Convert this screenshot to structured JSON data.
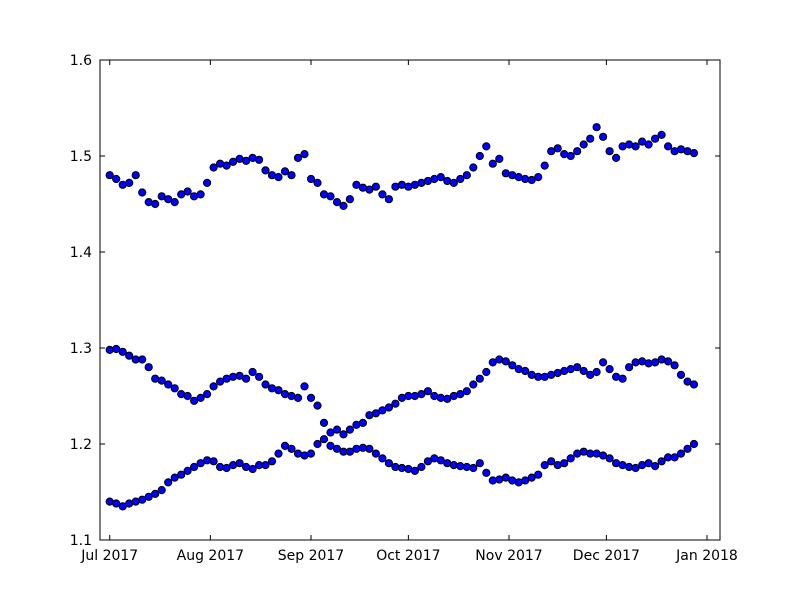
{
  "chart_data": {
    "type": "scatter",
    "title": "",
    "xlabel": "",
    "ylabel": "",
    "xlim": [
      "2017-06-28",
      "2018-01-05"
    ],
    "ylim": [
      1.1,
      1.6
    ],
    "grid": false,
    "marker_color": "#0000ff",
    "marker_edge_color": "#000000",
    "x_ticks": [
      {
        "date": "2017-07-01",
        "label": "Jul 2017"
      },
      {
        "date": "2017-08-01",
        "label": "Aug 2017"
      },
      {
        "date": "2017-09-01",
        "label": "Sep 2017"
      },
      {
        "date": "2017-10-01",
        "label": "Oct 2017"
      },
      {
        "date": "2017-11-01",
        "label": "Nov 2017"
      },
      {
        "date": "2017-12-01",
        "label": "Dec 2017"
      },
      {
        "date": "2018-01-01",
        "label": "Jan 2018"
      }
    ],
    "y_ticks": [
      {
        "value": 1.1,
        "label": "1.1"
      },
      {
        "value": 1.2,
        "label": "1.2"
      },
      {
        "value": 1.3,
        "label": "1.3"
      },
      {
        "value": 1.4,
        "label": "1.4"
      },
      {
        "value": 1.5,
        "label": "1.5"
      },
      {
        "value": 1.6,
        "label": "1.6"
      }
    ],
    "series": [
      {
        "x": [
          "2017-07-01",
          "2017-07-03",
          "2017-07-05",
          "2017-07-07",
          "2017-07-09",
          "2017-07-11",
          "2017-07-13",
          "2017-07-15",
          "2017-07-17",
          "2017-07-19",
          "2017-07-21",
          "2017-07-23",
          "2017-07-25",
          "2017-07-27",
          "2017-07-29",
          "2017-07-31",
          "2017-08-02",
          "2017-08-04",
          "2017-08-06",
          "2017-08-08",
          "2017-08-10",
          "2017-08-12",
          "2017-08-14",
          "2017-08-16",
          "2017-08-18",
          "2017-08-20",
          "2017-08-22",
          "2017-08-24",
          "2017-08-26",
          "2017-08-28",
          "2017-08-30",
          "2017-09-01",
          "2017-09-03",
          "2017-09-05",
          "2017-09-07",
          "2017-09-09",
          "2017-09-11",
          "2017-09-13",
          "2017-09-15",
          "2017-09-17",
          "2017-09-19",
          "2017-09-21",
          "2017-09-23",
          "2017-09-25",
          "2017-09-27",
          "2017-09-29",
          "2017-10-01",
          "2017-10-03",
          "2017-10-05",
          "2017-10-07",
          "2017-10-09",
          "2017-10-11",
          "2017-10-13",
          "2017-10-15",
          "2017-10-17",
          "2017-10-19",
          "2017-10-21",
          "2017-10-23",
          "2017-10-25",
          "2017-10-27",
          "2017-10-29",
          "2017-10-31",
          "2017-11-02",
          "2017-11-04",
          "2017-11-06",
          "2017-11-08",
          "2017-11-10",
          "2017-11-12",
          "2017-11-14",
          "2017-11-16",
          "2017-11-18",
          "2017-11-20",
          "2017-11-22",
          "2017-11-24",
          "2017-11-26",
          "2017-11-28",
          "2017-11-30",
          "2017-12-02",
          "2017-12-04",
          "2017-12-06",
          "2017-12-08",
          "2017-12-10",
          "2017-12-12",
          "2017-12-14",
          "2017-12-16",
          "2017-12-18",
          "2017-12-20",
          "2017-12-22",
          "2017-12-24",
          "2017-12-26",
          "2017-12-28"
        ],
        "y": [
          1.48,
          1.476,
          1.47,
          1.472,
          1.48,
          1.462,
          1.452,
          1.45,
          1.458,
          1.455,
          1.452,
          1.46,
          1.463,
          1.458,
          1.46,
          1.472,
          1.488,
          1.492,
          1.49,
          1.494,
          1.497,
          1.495,
          1.498,
          1.496,
          1.485,
          1.48,
          1.478,
          1.484,
          1.48,
          1.498,
          1.502,
          1.476,
          1.472,
          1.46,
          1.458,
          1.452,
          1.448,
          1.455,
          1.47,
          1.467,
          1.465,
          1.468,
          1.46,
          1.455,
          1.468,
          1.47,
          1.468,
          1.47,
          1.472,
          1.474,
          1.476,
          1.478,
          1.474,
          1.472,
          1.476,
          1.48,
          1.488,
          1.5,
          1.51,
          1.492,
          1.497,
          1.482,
          1.48,
          1.478,
          1.476,
          1.475,
          1.478,
          1.49,
          1.505,
          1.508,
          1.502,
          1.5,
          1.505,
          1.512,
          1.518,
          1.53,
          1.52,
          1.505,
          1.498,
          1.51,
          1.512,
          1.51,
          1.515,
          1.512,
          1.518,
          1.522,
          1.51,
          1.505,
          1.507,
          1.505,
          1.503
        ]
      },
      {
        "x": [
          "2017-07-01",
          "2017-07-03",
          "2017-07-05",
          "2017-07-07",
          "2017-07-09",
          "2017-07-11",
          "2017-07-13",
          "2017-07-15",
          "2017-07-17",
          "2017-07-19",
          "2017-07-21",
          "2017-07-23",
          "2017-07-25",
          "2017-07-27",
          "2017-07-29",
          "2017-07-31",
          "2017-08-02",
          "2017-08-04",
          "2017-08-06",
          "2017-08-08",
          "2017-08-10",
          "2017-08-12",
          "2017-08-14",
          "2017-08-16",
          "2017-08-18",
          "2017-08-20",
          "2017-08-22",
          "2017-08-24",
          "2017-08-26",
          "2017-08-28",
          "2017-08-30",
          "2017-09-01",
          "2017-09-03",
          "2017-09-05",
          "2017-09-07",
          "2017-09-09",
          "2017-09-11",
          "2017-09-13",
          "2017-09-15",
          "2017-09-17",
          "2017-09-19",
          "2017-09-21",
          "2017-09-23",
          "2017-09-25",
          "2017-09-27",
          "2017-09-29",
          "2017-10-01",
          "2017-10-03",
          "2017-10-05",
          "2017-10-07",
          "2017-10-09",
          "2017-10-11",
          "2017-10-13",
          "2017-10-15",
          "2017-10-17",
          "2017-10-19",
          "2017-10-21",
          "2017-10-23",
          "2017-10-25",
          "2017-10-27",
          "2017-10-29",
          "2017-10-31",
          "2017-11-02",
          "2017-11-04",
          "2017-11-06",
          "2017-11-08",
          "2017-11-10",
          "2017-11-12",
          "2017-11-14",
          "2017-11-16",
          "2017-11-18",
          "2017-11-20",
          "2017-11-22",
          "2017-11-24",
          "2017-11-26",
          "2017-11-28",
          "2017-11-30",
          "2017-12-02",
          "2017-12-04",
          "2017-12-06",
          "2017-12-08",
          "2017-12-10",
          "2017-12-12",
          "2017-12-14",
          "2017-12-16",
          "2017-12-18",
          "2017-12-20",
          "2017-12-22",
          "2017-12-24",
          "2017-12-26",
          "2017-12-28"
        ],
        "y": [
          1.298,
          1.299,
          1.296,
          1.292,
          1.288,
          1.288,
          1.28,
          1.268,
          1.266,
          1.262,
          1.258,
          1.252,
          1.25,
          1.245,
          1.248,
          1.252,
          1.26,
          1.265,
          1.268,
          1.27,
          1.271,
          1.268,
          1.275,
          1.27,
          1.262,
          1.258,
          1.256,
          1.252,
          1.25,
          1.248,
          1.26,
          1.248,
          1.24,
          1.222,
          1.212,
          1.215,
          1.21,
          1.215,
          1.22,
          1.222,
          1.23,
          1.232,
          1.235,
          1.238,
          1.242,
          1.248,
          1.25,
          1.25,
          1.252,
          1.255,
          1.25,
          1.248,
          1.247,
          1.25,
          1.252,
          1.255,
          1.262,
          1.268,
          1.275,
          1.285,
          1.288,
          1.286,
          1.282,
          1.278,
          1.276,
          1.272,
          1.27,
          1.27,
          1.272,
          1.274,
          1.276,
          1.278,
          1.28,
          1.276,
          1.272,
          1.275,
          1.285,
          1.278,
          1.27,
          1.268,
          1.28,
          1.285,
          1.286,
          1.284,
          1.285,
          1.288,
          1.286,
          1.282,
          1.272,
          1.265,
          1.262
        ]
      },
      {
        "x": [
          "2017-07-01",
          "2017-07-03",
          "2017-07-05",
          "2017-07-07",
          "2017-07-09",
          "2017-07-11",
          "2017-07-13",
          "2017-07-15",
          "2017-07-17",
          "2017-07-19",
          "2017-07-21",
          "2017-07-23",
          "2017-07-25",
          "2017-07-27",
          "2017-07-29",
          "2017-07-31",
          "2017-08-02",
          "2017-08-04",
          "2017-08-06",
          "2017-08-08",
          "2017-08-10",
          "2017-08-12",
          "2017-08-14",
          "2017-08-16",
          "2017-08-18",
          "2017-08-20",
          "2017-08-22",
          "2017-08-24",
          "2017-08-26",
          "2017-08-28",
          "2017-08-30",
          "2017-09-01",
          "2017-09-03",
          "2017-09-05",
          "2017-09-07",
          "2017-09-09",
          "2017-09-11",
          "2017-09-13",
          "2017-09-15",
          "2017-09-17",
          "2017-09-19",
          "2017-09-21",
          "2017-09-23",
          "2017-09-25",
          "2017-09-27",
          "2017-09-29",
          "2017-10-01",
          "2017-10-03",
          "2017-10-05",
          "2017-10-07",
          "2017-10-09",
          "2017-10-11",
          "2017-10-13",
          "2017-10-15",
          "2017-10-17",
          "2017-10-19",
          "2017-10-21",
          "2017-10-23",
          "2017-10-25",
          "2017-10-27",
          "2017-10-29",
          "2017-10-31",
          "2017-11-02",
          "2017-11-04",
          "2017-11-06",
          "2017-11-08",
          "2017-11-10",
          "2017-11-12",
          "2017-11-14",
          "2017-11-16",
          "2017-11-18",
          "2017-11-20",
          "2017-11-22",
          "2017-11-24",
          "2017-11-26",
          "2017-11-28",
          "2017-11-30",
          "2017-12-02",
          "2017-12-04",
          "2017-12-06",
          "2017-12-08",
          "2017-12-10",
          "2017-12-12",
          "2017-12-14",
          "2017-12-16",
          "2017-12-18",
          "2017-12-20",
          "2017-12-22",
          "2017-12-24",
          "2017-12-26",
          "2017-12-28"
        ],
        "y": [
          1.14,
          1.138,
          1.135,
          1.138,
          1.14,
          1.142,
          1.145,
          1.148,
          1.152,
          1.16,
          1.165,
          1.168,
          1.172,
          1.176,
          1.18,
          1.183,
          1.182,
          1.176,
          1.175,
          1.178,
          1.18,
          1.176,
          1.174,
          1.178,
          1.178,
          1.182,
          1.19,
          1.198,
          1.195,
          1.19,
          1.188,
          1.19,
          1.2,
          1.205,
          1.198,
          1.195,
          1.192,
          1.192,
          1.195,
          1.196,
          1.195,
          1.19,
          1.185,
          1.18,
          1.176,
          1.175,
          1.174,
          1.172,
          1.176,
          1.182,
          1.185,
          1.183,
          1.18,
          1.178,
          1.177,
          1.176,
          1.175,
          1.18,
          1.17,
          1.162,
          1.163,
          1.165,
          1.162,
          1.16,
          1.162,
          1.165,
          1.168,
          1.178,
          1.182,
          1.178,
          1.18,
          1.185,
          1.19,
          1.192,
          1.19,
          1.19,
          1.188,
          1.185,
          1.18,
          1.178,
          1.176,
          1.175,
          1.178,
          1.18,
          1.177,
          1.182,
          1.186,
          1.186,
          1.19,
          1.195,
          1.2
        ]
      }
    ]
  }
}
